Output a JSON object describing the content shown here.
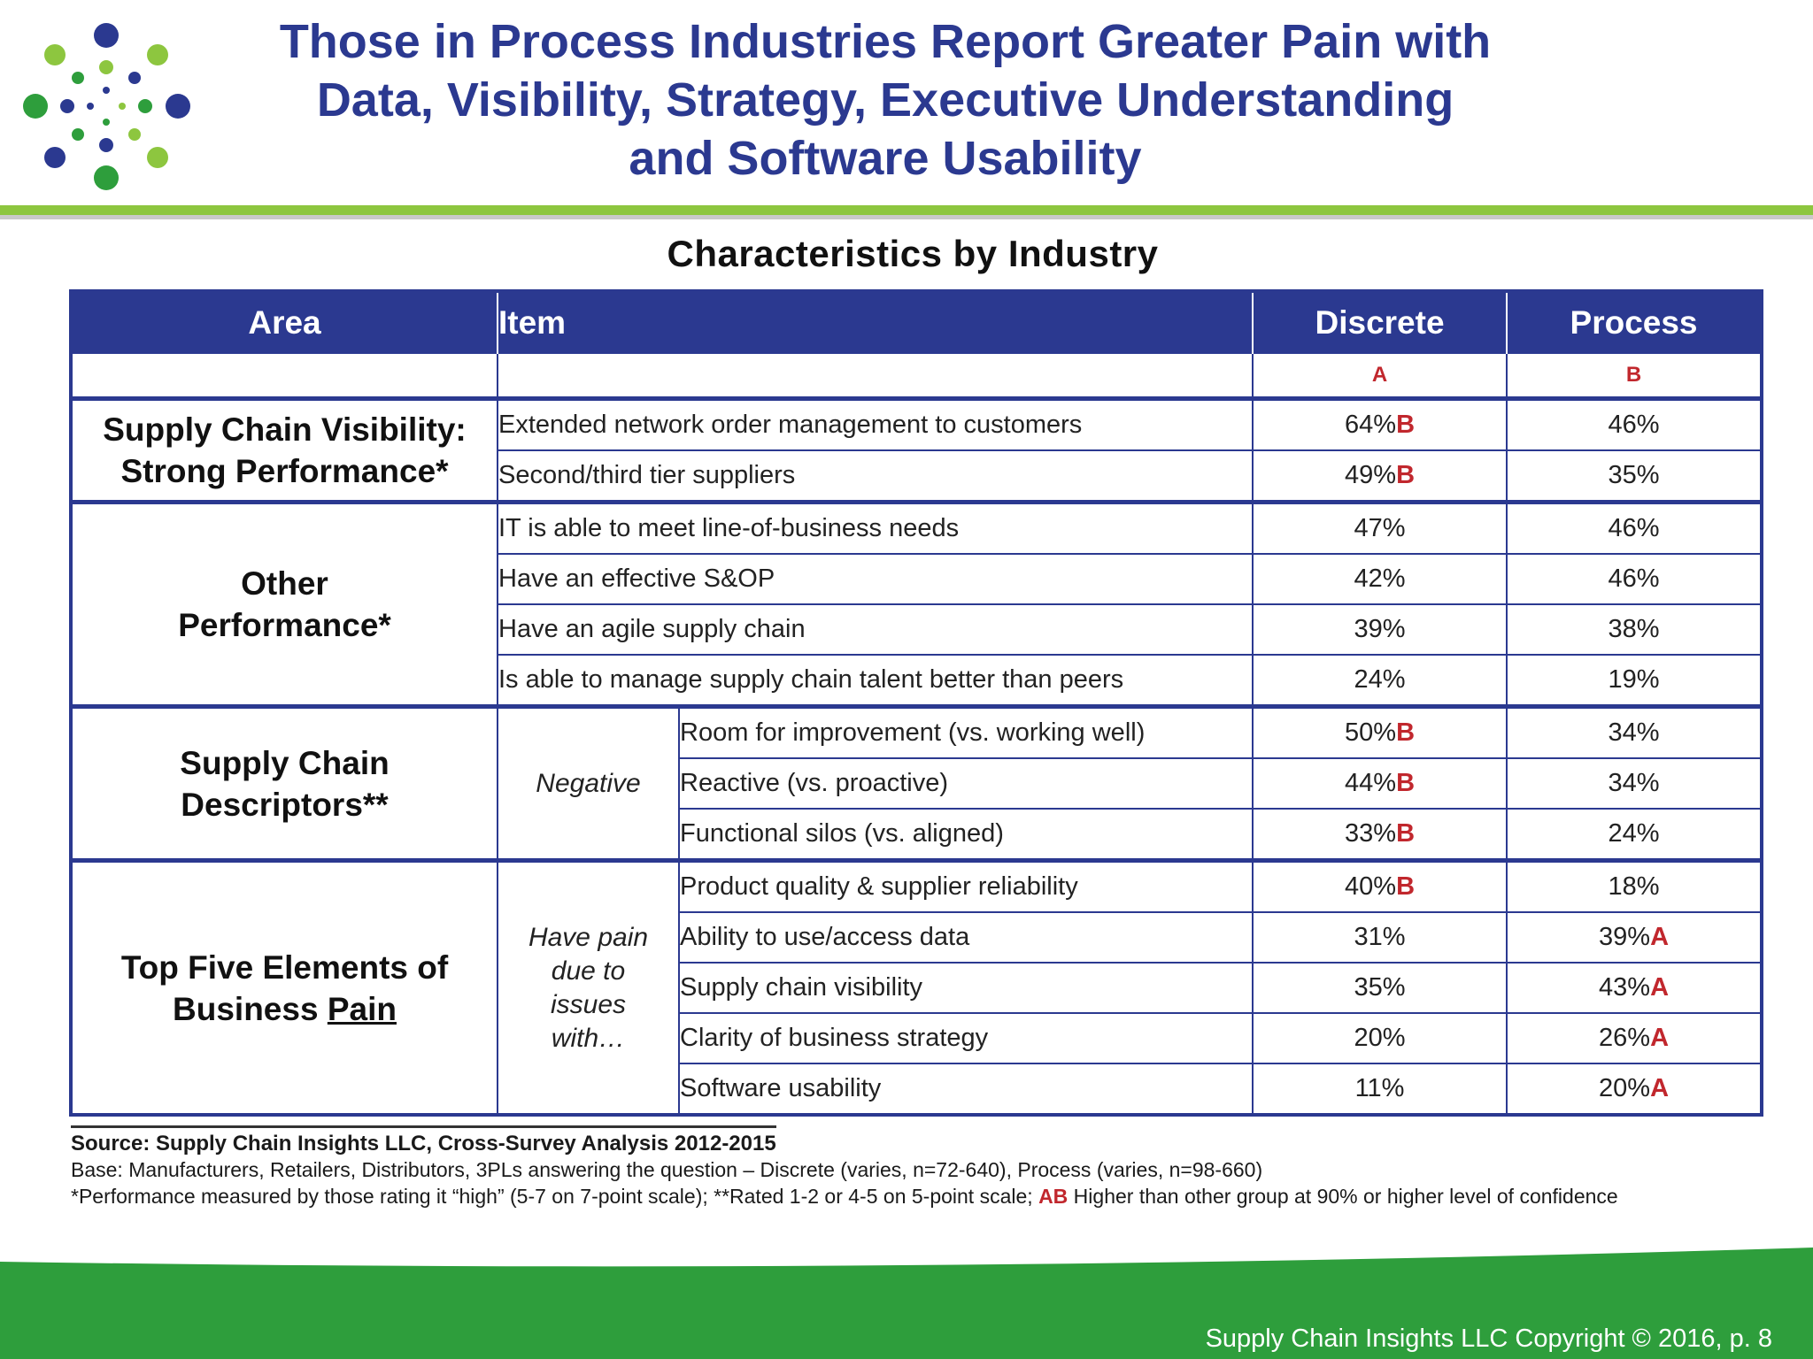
{
  "header": {
    "title_lines": [
      "Those in Process Industries Report Greater Pain with",
      "Data, Visibility, Strategy, Executive Understanding",
      "and Software Usability"
    ]
  },
  "table": {
    "caption": "Characteristics by Industry",
    "columns": {
      "area": "Area",
      "item": "Item",
      "discrete": "Discrete",
      "process": "Process"
    },
    "letters": {
      "discrete": "A",
      "process": "B"
    },
    "groups": [
      {
        "area_lines": [
          "Supply Chain Visibility:",
          "Strong Performance*"
        ],
        "rows": [
          {
            "item": "Extended network order management to customers",
            "discrete": "64%",
            "discrete_mark": "B",
            "process": "46%",
            "process_mark": ""
          },
          {
            "item": "Second/third tier suppliers",
            "discrete": "49%",
            "discrete_mark": "B",
            "process": "35%",
            "process_mark": ""
          }
        ]
      },
      {
        "area_lines": [
          "Other",
          "Performance*"
        ],
        "rows": [
          {
            "item": "IT is able to meet line-of-business needs",
            "discrete": "47%",
            "discrete_mark": "",
            "process": "46%",
            "process_mark": ""
          },
          {
            "item": "Have an effective S&OP",
            "discrete": "42%",
            "discrete_mark": "",
            "process": "46%",
            "process_mark": ""
          },
          {
            "item": "Have an agile supply chain",
            "discrete": "39%",
            "discrete_mark": "",
            "process": "38%",
            "process_mark": ""
          },
          {
            "item": "Is able to manage supply chain talent better than peers",
            "discrete": "24%",
            "discrete_mark": "",
            "process": "19%",
            "process_mark": ""
          }
        ]
      },
      {
        "area_lines": [
          "Supply Chain",
          "Descriptors**"
        ],
        "sub_lines": [
          "Negative"
        ],
        "rows": [
          {
            "item": "Room for improvement (vs. working well)",
            "discrete": "50%",
            "discrete_mark": "B",
            "process": "34%",
            "process_mark": ""
          },
          {
            "item": "Reactive (vs. proactive)",
            "discrete": "44%",
            "discrete_mark": "B",
            "process": "34%",
            "process_mark": ""
          },
          {
            "item": "Functional silos (vs. aligned)",
            "discrete": "33%",
            "discrete_mark": "B",
            "process": "24%",
            "process_mark": ""
          }
        ]
      },
      {
        "area_lines": [
          "Top Five Elements of",
          "Business "
        ],
        "area_underlined": "Pain",
        "sub_lines": [
          "Have pain",
          "due to",
          "issues",
          "with…"
        ],
        "rows": [
          {
            "item": "Product quality & supplier reliability",
            "discrete": "40%",
            "discrete_mark": "B",
            "process": "18%",
            "process_mark": ""
          },
          {
            "item": "Ability to use/access data",
            "discrete": "31%",
            "discrete_mark": "",
            "process": "39%",
            "process_mark": "A"
          },
          {
            "item": "Supply chain visibility",
            "discrete": "35%",
            "discrete_mark": "",
            "process": "43%",
            "process_mark": "A"
          },
          {
            "item": "Clarity of business strategy",
            "discrete": "20%",
            "discrete_mark": "",
            "process": "26%",
            "process_mark": "A"
          },
          {
            "item": "Software usability",
            "discrete": "11%",
            "discrete_mark": "",
            "process": "20%",
            "process_mark": "A"
          }
        ]
      }
    ]
  },
  "notes": {
    "source": "Source: Supply Chain Insights LLC, Cross-Survey Analysis 2012-2015",
    "base": "Base: Manufacturers, Retailers, Distributors, 3PLs answering the question – Discrete (varies, n=72-640), Process (varies, n=98-660)",
    "footnote_pre": "*Performance measured by those rating it “high” (5-7 on 7-point scale); **Rated 1-2 or 4-5 on 5-point scale; ",
    "footnote_mark": "AB",
    "footnote_post": " Higher than other group at 90% or higher level of confidence"
  },
  "footer": {
    "copyright": "Supply Chain Insights LLC Copyright © 2016, p. 8"
  },
  "colors": {
    "title_blue": "#2B3990",
    "accent_green": "#8DC63F",
    "footer_green": "#2E9E3C",
    "mark_red": "#C1272D"
  }
}
